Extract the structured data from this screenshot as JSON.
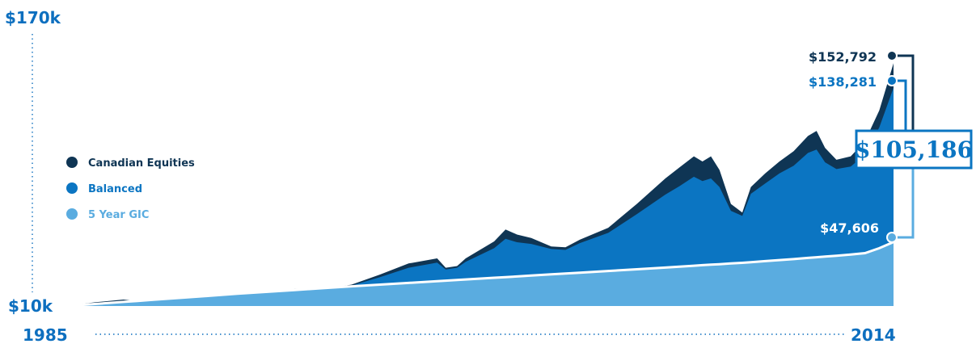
{
  "chart_data": {
    "type": "area",
    "x_start_label": "1985",
    "x_end_label": "2014",
    "y_min_label": "$10k",
    "y_max_label": "$170k",
    "xlim": [
      1985,
      2014
    ],
    "ylim": [
      10000,
      170000
    ],
    "x": [
      1985.0,
      1986.0,
      1987.0,
      1987.5,
      1988.0,
      1989.0,
      1990.0,
      1991.0,
      1992.0,
      1993.0,
      1994.0,
      1995.0,
      1996.0,
      1997.0,
      1998.0,
      1998.3,
      1998.7,
      1999.0,
      2000.0,
      2000.4,
      2000.8,
      2001.3,
      2002.0,
      2002.5,
      2003.0,
      2004.0,
      2005.0,
      2006.0,
      2006.5,
      2007.0,
      2007.3,
      2007.6,
      2007.9,
      2008.3,
      2008.7,
      2009.0,
      2009.5,
      2010.0,
      2010.5,
      2011.0,
      2011.3,
      2011.6,
      2012.0,
      2012.5,
      2013.0,
      2013.5,
      2014.0
    ],
    "series": [
      {
        "name": "Canadian Equities",
        "color": "#0f3554",
        "values": [
          10000,
          12200,
          13800,
          12800,
          13200,
          15200,
          14800,
          16500,
          16200,
          20000,
          19800,
          22600,
          28500,
          35000,
          38000,
          32500,
          33500,
          38000,
          48000,
          55000,
          52000,
          50000,
          45000,
          44500,
          49000,
          56000,
          70000,
          85000,
          91500,
          98000,
          95000,
          98000,
          90000,
          70000,
          65000,
          80000,
          88000,
          95000,
          101000,
          110000,
          113000,
          103000,
          96000,
          98000,
          107000,
          125000,
          152792
        ]
      },
      {
        "name": "Balanced",
        "color": "#0b75c2",
        "values": [
          10000,
          11800,
          12800,
          12300,
          12800,
          14500,
          14300,
          16300,
          16000,
          19500,
          19300,
          22000,
          27000,
          32500,
          35500,
          31500,
          32500,
          36000,
          44000,
          49500,
          47500,
          46500,
          43500,
          43000,
          47000,
          53000,
          64000,
          75500,
          80500,
          86000,
          83500,
          85000,
          80000,
          66000,
          63000,
          76000,
          82000,
          88000,
          92500,
          100000,
          102000,
          94500,
          90500,
          92000,
          99000,
          115000,
          138281
        ]
      },
      {
        "name": "5 Year GIC",
        "color": "#5aace0",
        "values": [
          10000,
          11200,
          12400,
          13000,
          13600,
          14800,
          16000,
          17200,
          18300,
          19400,
          20500,
          21600,
          22600,
          23600,
          24600,
          24900,
          25300,
          25600,
          26600,
          27000,
          27400,
          27900,
          28600,
          29100,
          29600,
          30600,
          31600,
          32600,
          33100,
          33700,
          34000,
          34300,
          34600,
          35000,
          35400,
          35800,
          36400,
          37000,
          37600,
          38300,
          38700,
          39100,
          39600,
          40300,
          41100,
          44000,
          47606
        ]
      }
    ],
    "end_labels": [
      "$152,792",
      "$138,281",
      "$47,606"
    ],
    "difference_label": "$105,186",
    "legend_placement": "left",
    "grid": false
  }
}
